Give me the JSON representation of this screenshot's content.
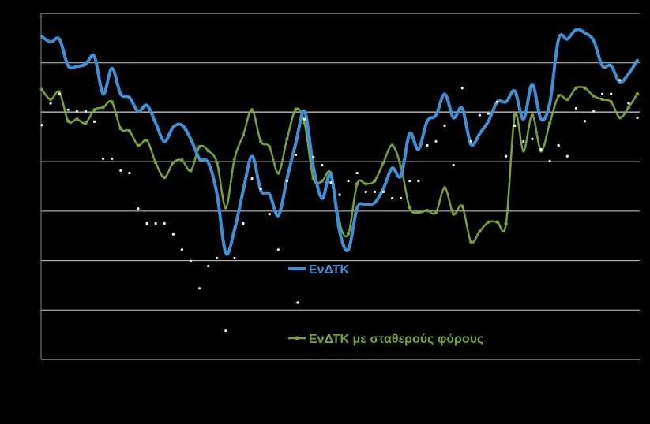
{
  "chart_data": {
    "type": "line",
    "ylim": [
      -5,
      2
    ],
    "grid": true,
    "legend": "center",
    "series": [
      {
        "name": "ΕνΔΤΚ",
        "color": "#3f8fd6",
        "style": "smooth-line",
        "values": [
          1.53,
          1.42,
          1.48,
          0.94,
          0.93,
          0.97,
          1.13,
          0.37,
          0.89,
          0.37,
          0.3,
          0.02,
          0.14,
          -0.22,
          -0.59,
          -0.3,
          -0.26,
          -0.54,
          -0.94,
          -1.02,
          -1.66,
          -2.85,
          -2.38,
          -1.58,
          -0.89,
          -1.58,
          -1.66,
          -2.09,
          -1.34,
          -0.62,
          0.02,
          -1.1,
          -1.74,
          -1.26,
          -2.41,
          -2.78,
          -1.93,
          -1.87,
          -1.83,
          -1.55,
          -1.13,
          -1.29,
          -0.43,
          -0.75,
          -0.18,
          -0.06,
          0.37,
          -0.11,
          0.08,
          -0.65,
          -0.43,
          -0.18,
          0.21,
          0.21,
          0.43,
          -0.14,
          0.57,
          -0.14,
          0.18,
          1.48,
          1.48,
          1.67,
          1.61,
          1.45,
          0.94,
          0.94,
          0.61,
          0.78,
          1.05
        ]
      },
      {
        "name": "ΕνΔΤΚ με σταθερούς φόρους",
        "color": "#77a23a",
        "style": "smooth-line-markers",
        "values": [
          0.46,
          0.26,
          0.41,
          -0.18,
          -0.14,
          -0.22,
          0.05,
          0.1,
          0.21,
          -0.33,
          -0.38,
          -0.67,
          -0.57,
          -1.02,
          -1.32,
          -1.02,
          -0.97,
          -1.18,
          -0.7,
          -0.78,
          -1.02,
          -1.93,
          -0.94,
          -0.46,
          0.05,
          -0.59,
          -0.7,
          -1.23,
          -0.54,
          0.06,
          -0.22,
          -1.34,
          -1.39,
          -1.23,
          -2.25,
          -2.46,
          -1.45,
          -1.45,
          -1.39,
          -1.02,
          -0.67,
          -1.1,
          -1.93,
          -2.03,
          -1.99,
          -2.03,
          -1.53,
          -2.06,
          -1.9,
          -2.62,
          -2.41,
          -2.22,
          -2.22,
          -2.26,
          -0.06,
          -0.78,
          -0.06,
          -0.78,
          -0.22,
          0.33,
          0.26,
          0.49,
          0.49,
          0.33,
          0.26,
          0.21,
          -0.11,
          0.1,
          0.37
        ]
      },
      {
        "color": "#ffffff",
        "style": "dots",
        "values": [
          -0.26,
          0.18,
          0.37,
          0.05,
          0.02,
          0.02,
          -0.19,
          -0.94,
          -0.94,
          -1.18,
          -1.23,
          -1.95,
          -2.25,
          -2.25,
          -2.25,
          -2.47,
          -2.78,
          -3.01,
          -3.56,
          -3.11,
          -2.95,
          -4.42,
          -2.95,
          -2.25,
          -1.34,
          -1.55,
          -2.06,
          -2.78,
          -1.39,
          -0.86,
          -0.14,
          -0.91,
          -1.07,
          -1.42,
          -1.67,
          -1.39,
          -1.23,
          -1.61,
          -1.61,
          -1.61,
          -1.74,
          -1.74,
          -1.39,
          -1.39,
          -0.67,
          -0.59,
          -0.27,
          -1.07,
          0.49,
          -0.59,
          -0.06,
          -0.03,
          0.21,
          -0.89,
          -0.27,
          -0.59,
          -0.54,
          -0.75,
          -0.99,
          -0.67,
          -0.89,
          0.08,
          -0.18,
          0.02,
          0.37,
          0.37,
          0.65,
          0.18,
          -0.11
        ]
      }
    ],
    "colors": {
      "background": "#000000",
      "gridline": "#d0d0d0",
      "zero_line": "#a0a0a0"
    }
  }
}
